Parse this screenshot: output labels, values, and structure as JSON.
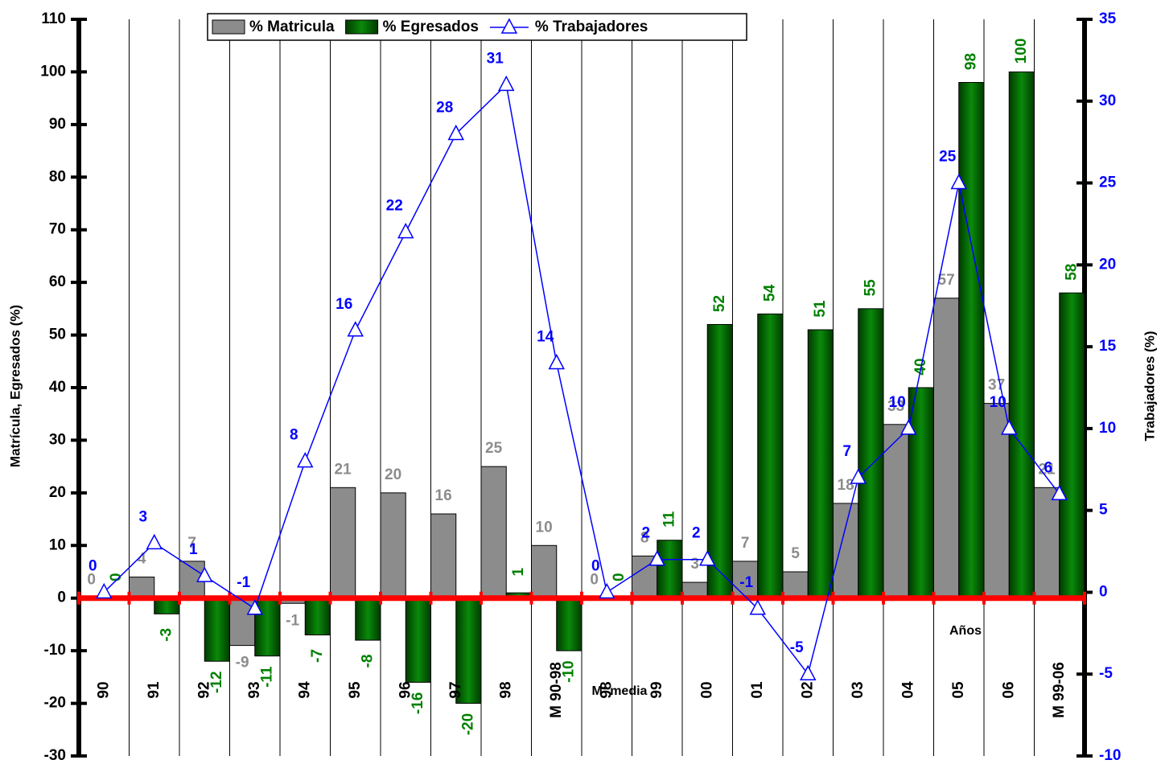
{
  "chart_data": {
    "type": "bar-line",
    "y_label": "Matrícula, Egresados (%)",
    "y2_label": "Trabajadores (%)",
    "annotations": [
      "Años",
      "M=media"
    ],
    "categories": [
      "90",
      "91",
      "92",
      "93",
      "94",
      "95",
      "96",
      "97",
      "98",
      "M 90-98",
      "98",
      "99",
      "00",
      "01",
      "02",
      "03",
      "04",
      "05",
      "06",
      "M 99-06"
    ],
    "series": [
      {
        "name": "% Matricula",
        "type": "bar",
        "color": "#8c8c8c",
        "label_color": "#8c8c8c",
        "values": [
          0,
          4,
          7,
          -9,
          -1,
          21,
          20,
          16,
          25,
          10,
          0,
          8,
          3,
          7,
          5,
          18,
          33,
          57,
          37,
          21
        ]
      },
      {
        "name": "% Egresados",
        "type": "bar",
        "color": "#006000",
        "label_color": "#008000",
        "values": [
          0,
          -3,
          -12,
          -11,
          -7,
          -8,
          -16,
          -20,
          1,
          -10,
          0,
          11,
          52,
          54,
          51,
          55,
          40,
          98,
          100,
          58
        ]
      },
      {
        "name": "% Trabajadores",
        "type": "line",
        "axis": "y2",
        "color": "#0000ff",
        "label_color": "#0000ff",
        "values": [
          0,
          3,
          1,
          -1,
          8,
          16,
          22,
          28,
          31,
          14,
          0,
          2,
          2,
          -1,
          -5,
          7,
          10,
          25,
          10,
          6
        ]
      }
    ],
    "ylim": [
      -30,
      110
    ],
    "yticks": [
      -30,
      -20,
      -10,
      0,
      10,
      20,
      30,
      40,
      50,
      60,
      70,
      80,
      90,
      100,
      110
    ],
    "y2lim": [
      -10,
      35
    ],
    "y2ticks": [
      -10,
      -5,
      0,
      5,
      10,
      15,
      20,
      25,
      30,
      35
    ],
    "zero_line_color": "#ff0000"
  }
}
